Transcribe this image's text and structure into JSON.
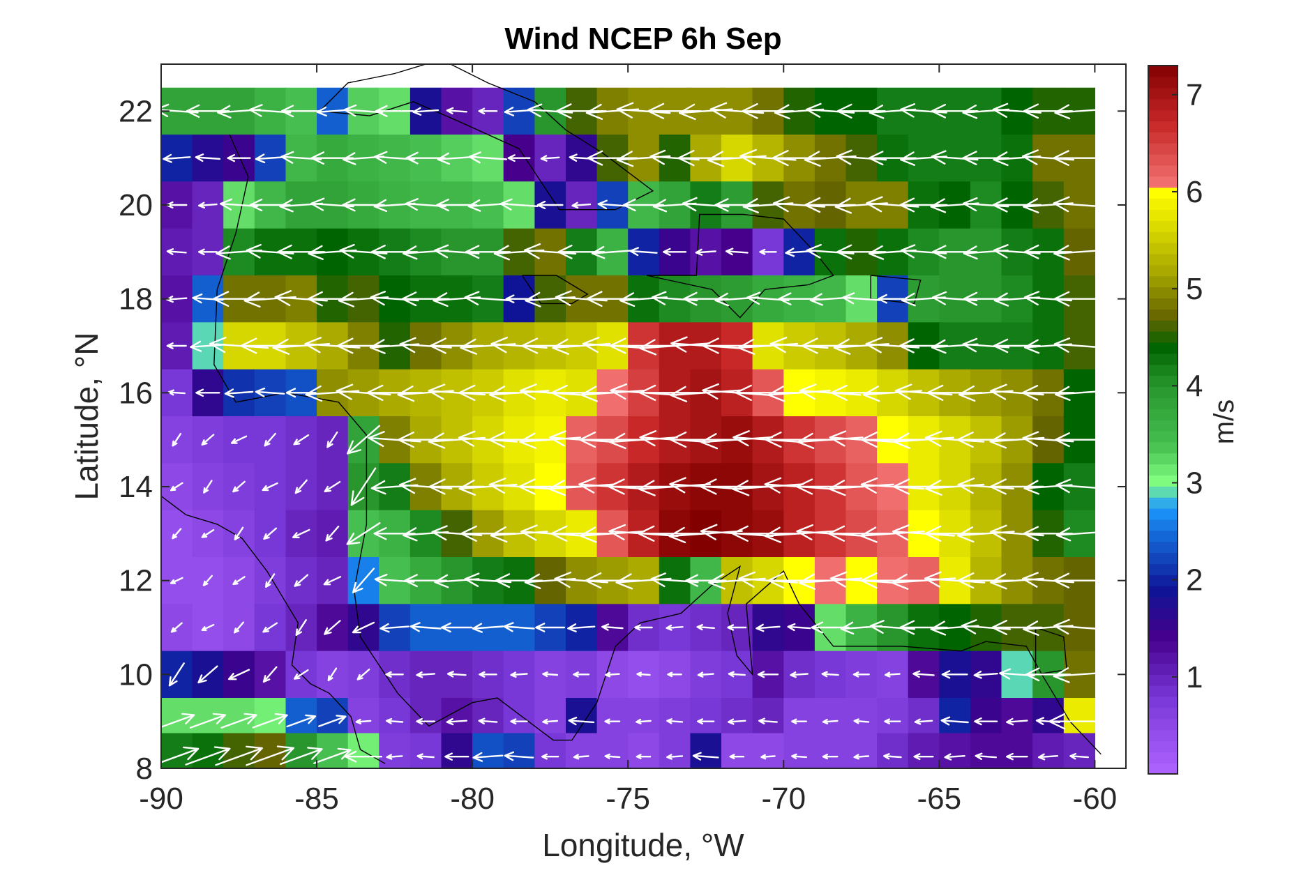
{
  "chart_data": {
    "type": "heatmap",
    "title": "Wind NCEP 6h Sep",
    "xlabel": "Longitude, °W",
    "ylabel": "Latitude, °N",
    "colorbar_label": "m/s",
    "xlim": [
      -90,
      -59
    ],
    "ylim": [
      8,
      23
    ],
    "x_ticks": [
      -90,
      -85,
      -80,
      -75,
      -70,
      -65,
      -60
    ],
    "x_tick_labels": [
      "-90",
      "-85",
      "-80",
      "-75",
      "-70",
      "-65",
      "-60"
    ],
    "y_ticks": [
      8,
      10,
      12,
      14,
      16,
      18,
      20,
      22
    ],
    "y_tick_labels": [
      "8",
      "10",
      "12",
      "14",
      "16",
      "18",
      "20",
      "22"
    ],
    "colorbar_range": [
      0,
      7.3
    ],
    "colorbar_ticks": [
      1,
      2,
      3,
      4,
      5,
      6,
      7
    ],
    "colorbar_tick_labels": [
      "1",
      "2",
      "3",
      "4",
      "5",
      "6",
      "7"
    ],
    "grid": false,
    "cell_size_deg": 1.0,
    "lon_centers": [
      -89.5,
      -88.5,
      -87.5,
      -86.5,
      -85.5,
      -84.5,
      -83.5,
      -82.5,
      -81.5,
      -80.5,
      -79.5,
      -78.5,
      -77.5,
      -76.5,
      -75.5,
      -74.5,
      -73.5,
      -72.5,
      -71.5,
      -70.5,
      -69.5,
      -68.5,
      -67.5,
      -66.5,
      -65.5,
      -64.5,
      -63.5,
      -62.5,
      -61.5,
      -60.5
    ],
    "lat_centers": [
      22,
      21,
      20,
      19,
      18,
      17,
      16,
      15,
      14,
      13,
      12,
      11,
      10,
      9,
      8.25
    ],
    "wind_speed": [
      [
        3.8,
        3.8,
        3.8,
        3.6,
        3.4,
        2.4,
        3.3,
        3.2,
        1.8,
        1.2,
        1.0,
        2.2,
        4.0,
        4.6,
        4.9,
        5.0,
        5.0,
        5.0,
        5.0,
        4.8,
        4.5,
        4.4,
        4.4,
        4.2,
        4.2,
        4.2,
        4.2,
        4.4,
        4.5,
        4.5
      ],
      [
        2.0,
        1.7,
        1.5,
        2.2,
        3.5,
        3.7,
        3.6,
        3.5,
        3.4,
        3.3,
        3.2,
        1.4,
        1.0,
        1.6,
        4.6,
        5.0,
        4.5,
        5.2,
        5.6,
        5.3,
        5.0,
        4.8,
        4.6,
        4.3,
        4.2,
        4.2,
        4.2,
        4.3,
        4.8,
        4.8
      ],
      [
        1.2,
        1.0,
        3.2,
        3.5,
        3.8,
        3.8,
        3.7,
        3.6,
        3.5,
        3.5,
        3.4,
        3.2,
        1.8,
        1.0,
        2.2,
        3.5,
        3.8,
        4.2,
        3.9,
        4.6,
        4.8,
        4.7,
        4.9,
        4.9,
        4.3,
        4.4,
        4.1,
        4.4,
        4.6,
        4.8
      ],
      [
        1.1,
        1.0,
        4.1,
        4.3,
        4.3,
        4.4,
        4.3,
        4.2,
        4.1,
        4.0,
        4.0,
        4.6,
        4.8,
        4.2,
        3.6,
        2.0,
        1.5,
        1.2,
        1.4,
        0.8,
        2.0,
        4.3,
        4.5,
        4.3,
        4.1,
        4.0,
        4.0,
        4.2,
        4.3,
        4.7
      ],
      [
        1.2,
        2.4,
        4.8,
        4.8,
        4.9,
        4.5,
        4.6,
        4.4,
        4.3,
        4.3,
        4.2,
        1.9,
        4.6,
        4.8,
        4.8,
        4.3,
        4.1,
        4.0,
        3.9,
        3.7,
        3.6,
        3.5,
        3.2,
        2.2,
        3.9,
        4.0,
        4.0,
        4.1,
        4.3,
        4.6
      ],
      [
        1.1,
        2.9,
        5.6,
        5.6,
        5.4,
        5.2,
        4.9,
        4.5,
        4.8,
        5.0,
        5.2,
        5.3,
        5.4,
        5.5,
        5.7,
        6.6,
        6.9,
        6.9,
        6.7,
        5.7,
        5.5,
        5.4,
        5.2,
        5.0,
        4.4,
        4.2,
        4.2,
        4.2,
        4.3,
        4.6
      ],
      [
        0.8,
        1.6,
        2.1,
        2.2,
        2.3,
        5.0,
        5.1,
        5.2,
        5.3,
        5.4,
        5.5,
        5.7,
        5.8,
        5.7,
        6.1,
        6.5,
        6.9,
        7.0,
        6.8,
        6.3,
        6.0,
        5.9,
        5.8,
        5.6,
        5.4,
        5.2,
        5.1,
        5.0,
        4.8,
        4.4
      ],
      [
        0.6,
        0.7,
        0.8,
        0.8,
        0.9,
        1.0,
        3.8,
        4.9,
        5.2,
        5.4,
        5.6,
        5.8,
        5.9,
        6.2,
        6.4,
        6.7,
        6.9,
        7.0,
        7.1,
        6.9,
        6.6,
        6.4,
        6.2,
        6.0,
        5.8,
        5.6,
        5.4,
        5.1,
        4.7,
        4.4
      ],
      [
        0.5,
        0.6,
        0.7,
        0.8,
        0.9,
        1.0,
        4.0,
        4.2,
        4.9,
        5.2,
        5.5,
        5.7,
        6.0,
        6.3,
        6.6,
        6.9,
        7.1,
        7.2,
        7.2,
        7.0,
        6.8,
        6.6,
        6.3,
        6.1,
        5.8,
        5.6,
        5.3,
        5.0,
        4.4,
        4.2
      ],
      [
        0.4,
        0.5,
        0.6,
        0.8,
        1.0,
        1.1,
        3.4,
        3.6,
        4.1,
        4.6,
        5.1,
        5.4,
        5.6,
        5.8,
        6.3,
        6.8,
        7.2,
        7.3,
        7.2,
        7.1,
        6.8,
        6.6,
        6.4,
        6.2,
        6.0,
        5.7,
        5.4,
        5.0,
        4.5,
        4.1
      ],
      [
        0.4,
        0.4,
        0.5,
        0.7,
        0.9,
        1.0,
        2.6,
        3.4,
        3.7,
        4.0,
        4.2,
        4.3,
        4.7,
        5.0,
        5.1,
        5.2,
        4.3,
        3.5,
        5.4,
        5.6,
        6.0,
        6.1,
        6.0,
        6.1,
        6.2,
        5.8,
        5.3,
        5.0,
        4.8,
        4.7
      ],
      [
        0.5,
        0.4,
        0.5,
        0.8,
        1.0,
        1.3,
        1.6,
        2.2,
        2.4,
        2.4,
        2.4,
        2.4,
        2.2,
        2.0,
        1.3,
        0.9,
        0.8,
        0.9,
        1.0,
        1.6,
        1.5,
        3.2,
        3.6,
        4.0,
        4.3,
        4.4,
        4.5,
        4.6,
        4.6,
        4.7
      ],
      [
        2.0,
        1.8,
        1.5,
        1.2,
        0.8,
        0.6,
        0.7,
        0.9,
        1.0,
        1.0,
        0.9,
        0.8,
        0.6,
        0.7,
        0.5,
        0.4,
        0.5,
        0.7,
        0.8,
        1.2,
        0.9,
        0.8,
        0.7,
        0.6,
        1.3,
        1.8,
        1.6,
        2.9,
        4.0,
        4.8
      ],
      [
        3.2,
        3.2,
        3.2,
        3.1,
        2.4,
        2.2,
        0.6,
        0.8,
        1.0,
        1.2,
        1.0,
        0.8,
        0.6,
        1.8,
        0.6,
        0.6,
        0.7,
        0.8,
        0.9,
        1.0,
        0.6,
        0.6,
        0.6,
        0.7,
        0.9,
        2.0,
        1.5,
        1.3,
        1.6,
        5.8
      ],
      [
        4.2,
        4.3,
        4.6,
        4.7,
        4.0,
        3.4,
        3.1,
        0.7,
        0.8,
        1.6,
        2.3,
        2.2,
        0.8,
        0.6,
        0.6,
        0.5,
        0.7,
        1.8,
        0.5,
        0.5,
        0.6,
        0.6,
        0.6,
        0.9,
        1.1,
        1.2,
        1.3,
        1.3,
        1.1,
        1.0
      ]
    ],
    "wind_direction_note": "predominantly easterly trade winds (arrows point west); weak/variable over Central America; westerly in the far south-west"
  }
}
